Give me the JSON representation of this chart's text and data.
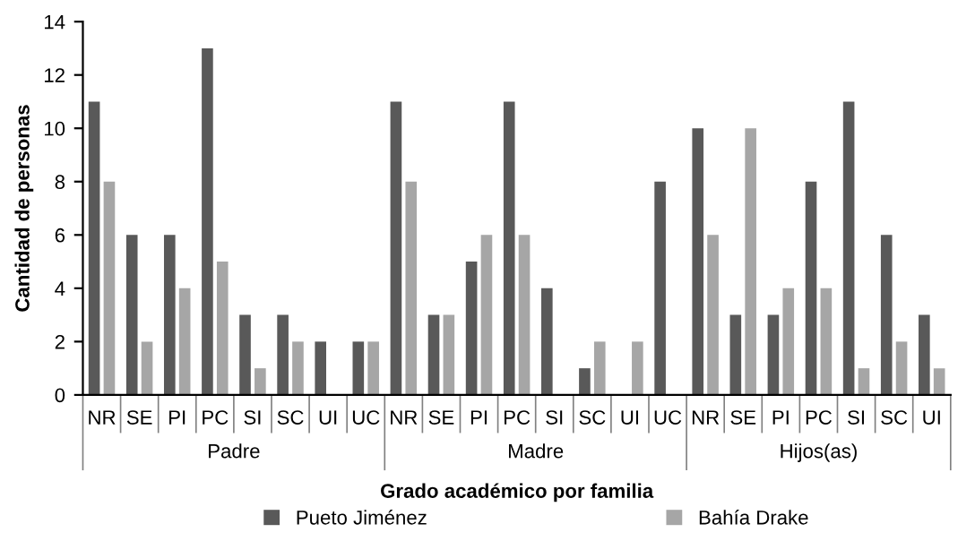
{
  "chart_data": {
    "type": "bar",
    "categories": [
      "NR",
      "SE",
      "PI",
      "PC",
      "SI",
      "SC",
      "UI",
      "UC",
      "NR",
      "SE",
      "PI",
      "PC",
      "SI",
      "SC",
      "UI",
      "UC",
      "NR",
      "SE",
      "PI",
      "PC",
      "SI",
      "SC",
      "UI"
    ],
    "series": [
      {
        "name": "Pueto Jiménez",
        "color": "#595959",
        "values": [
          11,
          6,
          6,
          13,
          3,
          3,
          2,
          2,
          11,
          3,
          5,
          11,
          4,
          1,
          0,
          8,
          10,
          3,
          3,
          8,
          11,
          6,
          3
        ]
      },
      {
        "name": "Bahía Drake",
        "color": "#a6a6a6",
        "values": [
          8,
          2,
          4,
          5,
          1,
          2,
          0,
          2,
          8,
          3,
          6,
          6,
          0,
          2,
          2,
          0,
          6,
          10,
          4,
          4,
          1,
          2,
          1
        ]
      }
    ],
    "xlabel": "Grado académico por familia",
    "ylabel": "Cantidad de personas",
    "ylim": [
      0,
      14
    ],
    "yticks": [
      0,
      2,
      4,
      6,
      8,
      10,
      12,
      14
    ],
    "annotations": [
      "Padre",
      "Madre",
      "Hijos(as)"
    ],
    "grid": false,
    "legend": "bottom"
  }
}
